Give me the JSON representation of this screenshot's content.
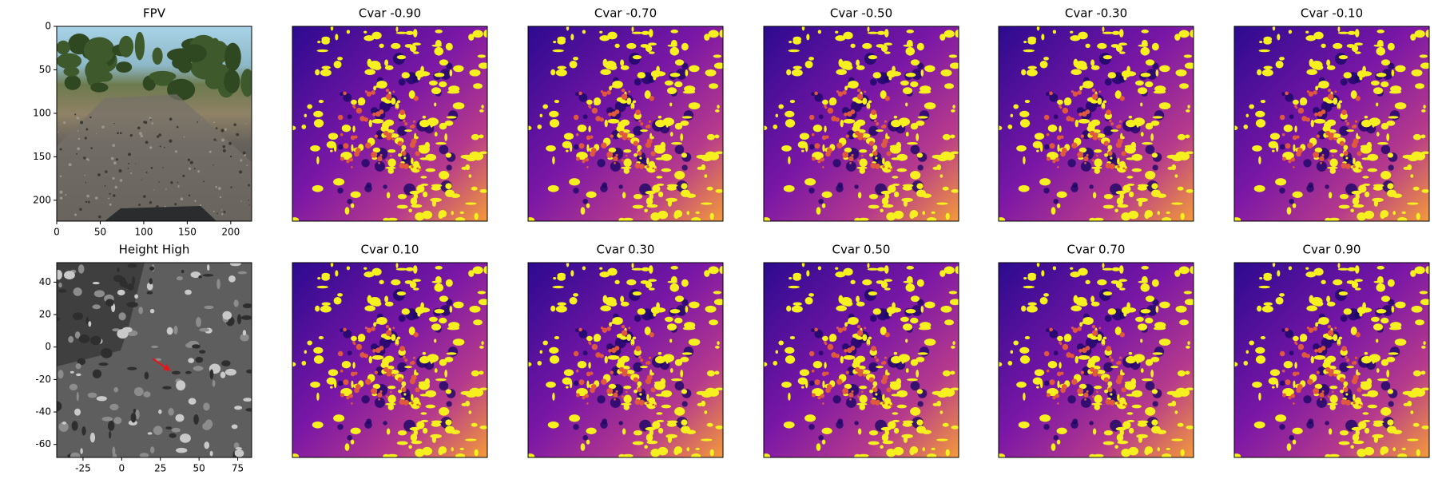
{
  "chart_data": [
    {
      "type": "image",
      "title": "FPV",
      "xlim": [
        0,
        224
      ],
      "ylim": [
        224,
        0
      ],
      "xticks": [
        0,
        50,
        100,
        150,
        200
      ],
      "yticks": [
        0,
        50,
        100,
        150,
        200
      ]
    },
    {
      "type": "image",
      "title": "Height High",
      "xlim": [
        -42,
        84
      ],
      "ylim": [
        -68,
        52
      ],
      "xticks": [
        -25,
        0,
        25,
        50,
        75
      ],
      "yticks": [
        -60,
        -40,
        -20,
        0,
        20,
        40
      ]
    },
    {
      "type": "image",
      "title": "Cvar -0.90"
    },
    {
      "type": "image",
      "title": "Cvar -0.70"
    },
    {
      "type": "image",
      "title": "Cvar -0.50"
    },
    {
      "type": "image",
      "title": "Cvar -0.30"
    },
    {
      "type": "image",
      "title": "Cvar -0.10"
    },
    {
      "type": "image",
      "title": "Cvar 0.10"
    },
    {
      "type": "image",
      "title": "Cvar 0.30"
    },
    {
      "type": "image",
      "title": "Cvar 0.50"
    },
    {
      "type": "image",
      "title": "Cvar 0.70"
    },
    {
      "type": "image",
      "title": "Cvar 0.90"
    }
  ]
}
